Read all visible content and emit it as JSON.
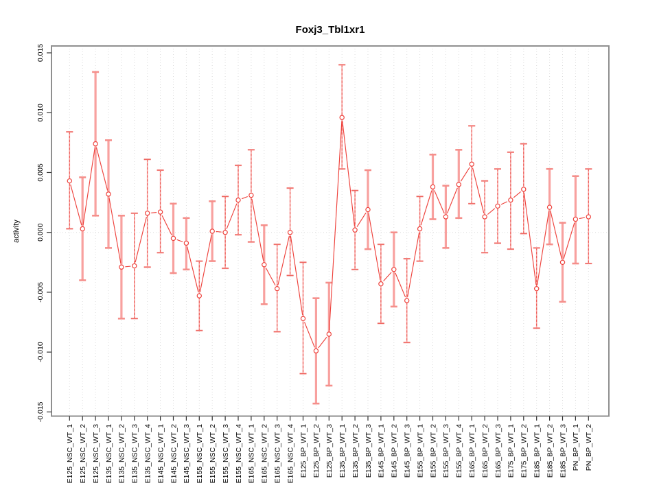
{
  "chart_data": {
    "type": "line",
    "title": "Foxj3_Tbl1xr1",
    "xlabel": "",
    "ylabel": "activity",
    "ylim": [
      -0.015,
      0.015
    ],
    "yticks": [
      -0.015,
      -0.01,
      -0.005,
      0.0,
      0.005,
      0.01,
      0.015
    ],
    "grid": "vertical dotted gridline per category plus dotted zero line",
    "legend_position": "none",
    "marker": "open-circle",
    "categories": [
      "E125_NSC_WT_1",
      "E125_NSC_WT_2",
      "E125_NSC_WT_3",
      "E135_NSC_WT_1",
      "E135_NSC_WT_2",
      "E135_NSC_WT_3",
      "E135_NSC_WT_4",
      "E145_NSC_WT_1",
      "E145_NSC_WT_2",
      "E145_NSC_WT_3",
      "E155_NSC_WT_1",
      "E155_NSC_WT_2",
      "E155_NSC_WT_3",
      "E155_NSC_WT_4",
      "E165_NSC_WT_1",
      "E165_NSC_WT_2",
      "E165_NSC_WT_3",
      "E165_NSC_WT_4",
      "E125_BP_WT_1",
      "E125_BP_WT_2",
      "E125_BP_WT_3",
      "E135_BP_WT_1",
      "E135_BP_WT_2",
      "E135_BP_WT_3",
      "E145_BP_WT_1",
      "E145_BP_WT_2",
      "E145_BP_WT_3",
      "E155_BP_WT_1",
      "E155_BP_WT_2",
      "E155_BP_WT_3",
      "E155_BP_WT_4",
      "E165_BP_WT_1",
      "E165_BP_WT_2",
      "E165_BP_WT_3",
      "E175_BP_WT_1",
      "E175_BP_WT_2",
      "E185_BP_WT_1",
      "E185_BP_WT_2",
      "E185_BP_WT_3",
      "PN_BP_WT_1",
      "PN_BP_WT_2"
    ],
    "series": [
      {
        "name": "activity",
        "values": [
          0.0043,
          0.0003,
          0.0074,
          0.0032,
          -0.0029,
          -0.0028,
          0.0016,
          0.0017,
          -0.0005,
          -0.0009,
          -0.0053,
          0.0001,
          0.0,
          0.0027,
          0.0031,
          -0.0027,
          -0.0047,
          0.0,
          -0.0072,
          -0.0099,
          -0.0085,
          0.0096,
          0.0002,
          0.0019,
          -0.0043,
          -0.0031,
          -0.0057,
          0.0003,
          0.0038,
          0.0013,
          0.004,
          0.0057,
          0.0013,
          0.0022,
          0.0027,
          0.0036,
          -0.0047,
          0.0021,
          -0.0025,
          0.0011,
          0.0013
        ],
        "error_low": [
          0.0003,
          -0.004,
          0.0014,
          -0.0013,
          -0.0072,
          -0.0072,
          -0.0029,
          -0.0017,
          -0.0034,
          -0.0031,
          -0.0082,
          -0.0024,
          -0.003,
          -0.0002,
          -0.0008,
          -0.006,
          -0.0083,
          -0.0036,
          -0.0118,
          -0.0143,
          -0.0128,
          0.0053,
          -0.0031,
          -0.0014,
          -0.0076,
          -0.0062,
          -0.0092,
          -0.0024,
          0.0011,
          -0.0013,
          0.0012,
          0.0024,
          -0.0017,
          -0.0009,
          -0.0014,
          -0.0001,
          -0.008,
          -0.001,
          -0.0058,
          -0.0026,
          -0.0026
        ],
        "error_high": [
          0.0084,
          0.0046,
          0.0134,
          0.0077,
          0.0014,
          0.0016,
          0.0061,
          0.0052,
          0.0024,
          0.0012,
          -0.0024,
          0.0026,
          0.003,
          0.0056,
          0.0069,
          0.0006,
          -0.001,
          0.0037,
          -0.0025,
          -0.0055,
          -0.0042,
          0.014,
          0.0035,
          0.0052,
          -0.001,
          0.0,
          -0.0022,
          0.003,
          0.0065,
          0.0039,
          0.0069,
          0.0089,
          0.0043,
          0.0053,
          0.0067,
          0.0074,
          -0.0013,
          0.0053,
          0.0008,
          0.0047,
          0.0053
        ]
      }
    ],
    "error_bar_styles": [
      "dashed",
      "pink",
      "pink",
      "pink",
      "pink",
      "dashed",
      "dashed",
      "dashed",
      "pink",
      "pink",
      "dashed",
      "pink",
      "dashed",
      "dashed",
      "dashed",
      "pink",
      "dashed",
      "dashed",
      "dashed",
      "pink",
      "pink",
      "dashed",
      "dashed",
      "pink",
      "dashed",
      "pink",
      "dashed",
      "dashed",
      "pink",
      "pink",
      "pink",
      "dashed",
      "dashed",
      "dashed",
      "dashed",
      "dashed",
      "dashed",
      "pink",
      "pink",
      "pink",
      "dashed"
    ]
  },
  "colors": {
    "series_red": "#ee413b",
    "error_bar_pink": "#f8a19f",
    "error_bar_red": "#ec5a54",
    "gridline_gray": "#dbdbdb",
    "frame_gray": "#8f8f8f",
    "tick_color": "#2f2f2f",
    "text_color": "#000000",
    "background": "#ffffff"
  }
}
